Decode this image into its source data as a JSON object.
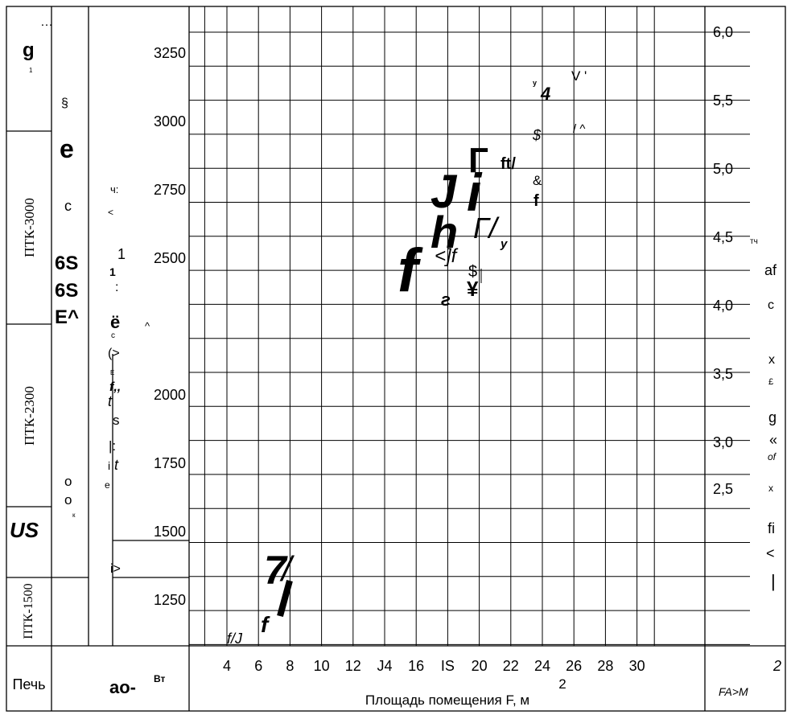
{
  "chart_data": {
    "type": "line",
    "title": "",
    "xlabel": "Площадь помещения F, м",
    "xlabel_exponent": "2",
    "x_ticks": [
      "4",
      "6",
      "8",
      "10",
      "12",
      "J4",
      "16",
      "IS",
      "20",
      "22",
      "24",
      "26",
      "28",
      "30"
    ],
    "y_left_ticks": [
      "3250",
      "3000",
      "2750",
      "2500",
      "2250",
      "2000",
      "1750",
      "1500",
      "1250"
    ],
    "y_right_ticks": [
      "6,0",
      "5,5",
      "5,0",
      "4,5",
      "4,0",
      "3,5",
      "3,0",
      "2,5"
    ],
    "y_left_range": [
      1250,
      3250
    ],
    "y_right_range": [
      2.5,
      6.0
    ],
    "x_range": [
      4,
      30
    ],
    "grid": true
  },
  "columns": {
    "stove_header": "Печь",
    "power_header": "ao-",
    "power_superscript": "Вт",
    "right_header": "FA>M",
    "right_header_exponent": "2"
  },
  "stove_bands": [
    {
      "label": "ПТК-3000"
    },
    {
      "label": "ПТК-2300"
    },
    {
      "label": "ПТК-1500"
    }
  ],
  "left_marks": {
    "top_g": "g",
    "dots": "…",
    "tiny": "1",
    "us": "US"
  },
  "col2_marks": [
    "§",
    "e",
    "c",
    "6S",
    "6S",
    "E^",
    "o",
    "o",
    "к"
  ],
  "col3_marks": [
    "ч:",
    "<",
    "1",
    "1",
    ":",
    "ё",
    "с",
    "(>",
    "E",
    "f,,",
    "t",
    "s",
    "|:",
    "i",
    "t",
    "e",
    "i>"
  ],
  "right_col_marks": [
    "тч",
    "af",
    "c",
    "x",
    "£",
    "g",
    "«",
    "of",
    "x",
    "fi",
    "<",
    "|"
  ],
  "artifacts": [
    "4",
    "V '",
    "/ ^",
    "$",
    "&",
    "f",
    "ft/",
    "Г",
    "J",
    "i",
    "h",
    "Г/",
    "у",
    "<]f",
    "f",
    "$",
    "¥",
    "г",
    "7",
    "/",
    "f",
    "f/J",
    "^",
    "у"
  ]
}
